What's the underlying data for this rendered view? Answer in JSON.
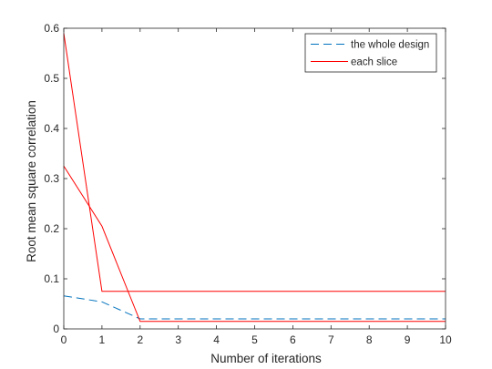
{
  "chart_data": {
    "type": "line",
    "title": "",
    "xlabel": "Number of iterations",
    "ylabel": "Root mean square correlation",
    "xlim": [
      0,
      10
    ],
    "ylim": [
      0,
      0.6
    ],
    "x_ticks": [
      0,
      1,
      2,
      3,
      4,
      5,
      6,
      7,
      8,
      9,
      10
    ],
    "y_ticks": [
      0,
      0.1,
      0.2,
      0.3,
      0.4,
      0.5,
      0.6
    ],
    "y_tick_labels": [
      "0",
      "0.1",
      "0.2",
      "0.3",
      "0.4",
      "0.5",
      "0.6"
    ],
    "grid": false,
    "legend_position": "top-right",
    "series": [
      {
        "name": "the whole design",
        "color": "#0072BD",
        "style": "dashed",
        "x": [
          0,
          1,
          2,
          3,
          4,
          5,
          6,
          7,
          8,
          9,
          10
        ],
        "y": [
          0.066,
          0.054,
          0.02,
          0.02,
          0.02,
          0.02,
          0.02,
          0.02,
          0.02,
          0.02,
          0.02
        ]
      },
      {
        "name": "each slice",
        "color": "#FF0000",
        "style": "solid",
        "x": [
          0,
          1,
          2,
          3,
          4,
          5,
          6,
          7,
          8,
          9,
          10
        ],
        "y": [
          0.59,
          0.075,
          0.075,
          0.075,
          0.075,
          0.075,
          0.075,
          0.075,
          0.075,
          0.075,
          0.075
        ]
      },
      {
        "name": "",
        "color": "#FF0000",
        "style": "solid",
        "x": [
          0,
          1,
          2,
          3,
          4,
          5,
          6,
          7,
          8,
          9,
          10
        ],
        "y": [
          0.325,
          0.205,
          0.015,
          0.015,
          0.015,
          0.015,
          0.015,
          0.015,
          0.015,
          0.015,
          0.015
        ]
      }
    ]
  }
}
